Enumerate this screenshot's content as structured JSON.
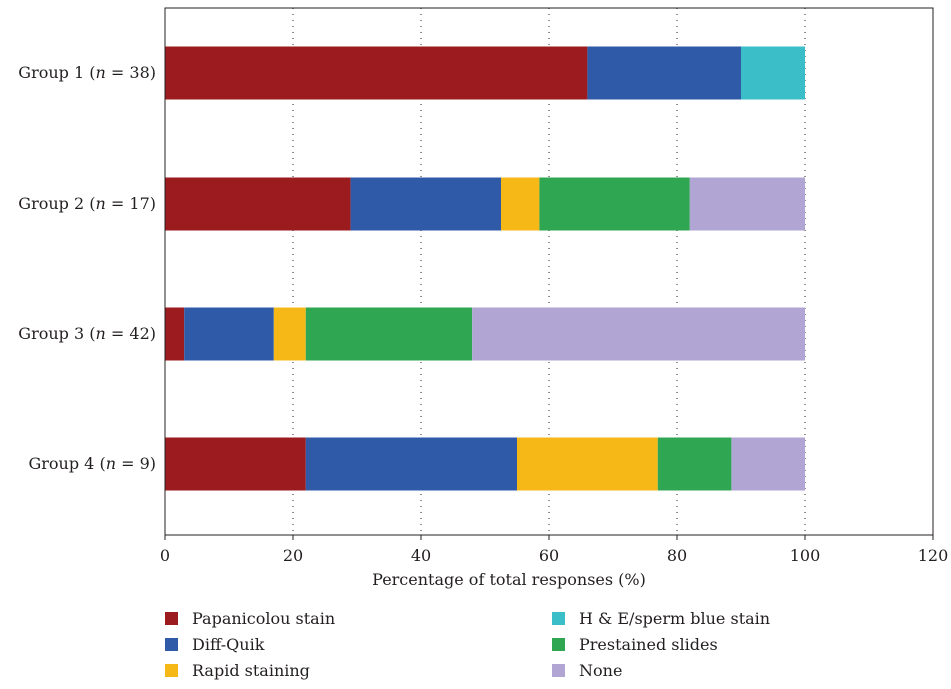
{
  "chart_data": {
    "type": "bar",
    "orientation": "horizontal",
    "stacked": true,
    "categories": [
      {
        "pre": "Group 1 (",
        "n": "n",
        "post": " = 38)"
      },
      {
        "pre": "Group 2 (",
        "n": "n",
        "post": " = 17)"
      },
      {
        "pre": "Group 3 (",
        "n": "n",
        "post": " = 42)"
      },
      {
        "pre": "Group 4 (",
        "n": "n",
        "post": " = 9)"
      }
    ],
    "series": [
      {
        "name": "Papanicolou stain",
        "color": "#9b1b1f",
        "values": [
          66,
          29,
          3,
          22
        ]
      },
      {
        "name": "Diff-Quik",
        "color": "#2e5aa8",
        "values": [
          24,
          23.5,
          14,
          33
        ]
      },
      {
        "name": "Rapid staining",
        "color": "#f6b817",
        "values": [
          0,
          6,
          5,
          22
        ]
      },
      {
        "name": "H & E/sperm blue stain",
        "color": "#3bbec8",
        "values": [
          10,
          0,
          0,
          0
        ]
      },
      {
        "name": "Prestained slides",
        "color": "#2fa651",
        "values": [
          0,
          23.5,
          26,
          11.5
        ]
      },
      {
        "name": "None",
        "color": "#b1a5d3",
        "values": [
          0,
          18,
          52,
          11.5
        ]
      }
    ],
    "xlabel": "Percentage of total responses (%)",
    "ylabel": "",
    "xlim": [
      0,
      120
    ],
    "xticks": [
      0,
      20,
      40,
      60,
      80,
      100,
      120
    ],
    "grid": "vertical dotted",
    "legend_placement": "bottom",
    "legend_order": [
      "Papanicolou stain",
      "Diff-Quik",
      "Rapid staining",
      "H & E/sperm blue stain",
      "Prestained slides",
      "None"
    ]
  }
}
